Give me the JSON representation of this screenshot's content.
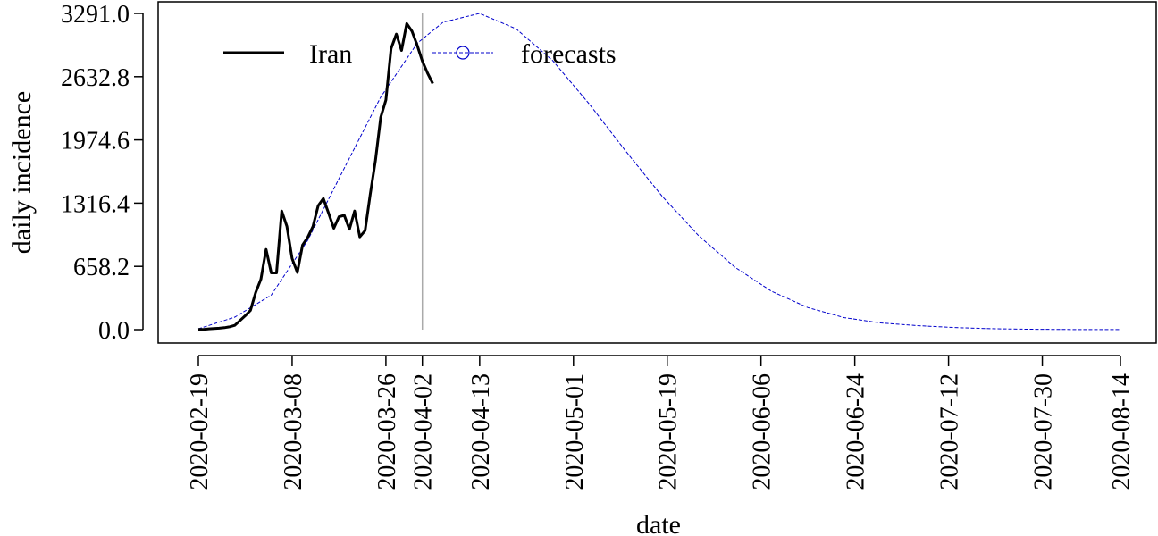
{
  "chart_data": {
    "type": "line",
    "xlabel": "date",
    "ylabel": "daily incidence",
    "x_range": [
      "2020-02-19",
      "2020-08-14"
    ],
    "ylim": [
      0,
      3291
    ],
    "y_ticks": [
      "0.0",
      "658.2",
      "1316.4",
      "1974.6",
      "2632.8",
      "3291.0"
    ],
    "x_ticks": [
      "2020-02-19",
      "2020-03-08",
      "2020-03-26",
      "2020-04-02",
      "2020-04-13",
      "2020-05-01",
      "2020-05-19",
      "2020-06-06",
      "2020-06-24",
      "2020-07-12",
      "2020-07-30",
      "2020-08-14"
    ],
    "vline_date": "2020-04-02",
    "grid": false,
    "legend_position": "top-left",
    "series": [
      {
        "name": "Iran",
        "color": "#000000",
        "style": "solid",
        "points": [
          [
            "2020-02-19",
            2
          ],
          [
            "2020-02-20",
            3
          ],
          [
            "2020-02-21",
            8
          ],
          [
            "2020-02-22",
            12
          ],
          [
            "2020-02-23",
            15
          ],
          [
            "2020-02-24",
            20
          ],
          [
            "2020-02-25",
            30
          ],
          [
            "2020-02-26",
            45
          ],
          [
            "2020-02-27",
            95
          ],
          [
            "2020-02-28",
            145
          ],
          [
            "2020-02-29",
            200
          ],
          [
            "2020-03-01",
            385
          ],
          [
            "2020-03-02",
            525
          ],
          [
            "2020-03-03",
            835
          ],
          [
            "2020-03-04",
            590
          ],
          [
            "2020-03-05",
            590
          ],
          [
            "2020-03-06",
            1235
          ],
          [
            "2020-03-07",
            1075
          ],
          [
            "2020-03-08",
            740
          ],
          [
            "2020-03-09",
            595
          ],
          [
            "2020-03-10",
            880
          ],
          [
            "2020-03-11",
            960
          ],
          [
            "2020-03-12",
            1075
          ],
          [
            "2020-03-13",
            1290
          ],
          [
            "2020-03-14",
            1365
          ],
          [
            "2020-03-15",
            1210
          ],
          [
            "2020-03-16",
            1055
          ],
          [
            "2020-03-17",
            1175
          ],
          [
            "2020-03-18",
            1190
          ],
          [
            "2020-03-19",
            1045
          ],
          [
            "2020-03-20",
            1235
          ],
          [
            "2020-03-21",
            965
          ],
          [
            "2020-03-22",
            1030
          ],
          [
            "2020-03-23",
            1410
          ],
          [
            "2020-03-24",
            1760
          ],
          [
            "2020-03-25",
            2210
          ],
          [
            "2020-03-26",
            2390
          ],
          [
            "2020-03-27",
            2925
          ],
          [
            "2020-03-28",
            3075
          ],
          [
            "2020-03-29",
            2905
          ],
          [
            "2020-03-30",
            3185
          ],
          [
            "2020-03-31",
            3105
          ],
          [
            "2020-04-01",
            2960
          ],
          [
            "2020-04-02",
            2795
          ],
          [
            "2020-04-03",
            2670
          ],
          [
            "2020-04-04",
            2560
          ]
        ]
      },
      {
        "name": "forecasts",
        "color": "#0000cc",
        "style": "dashed",
        "marker": "circle",
        "peak_date": "2020-04-13",
        "peak_value": 3291,
        "points": [
          [
            "2020-02-19",
            8
          ],
          [
            "2020-02-26",
            130
          ],
          [
            "2020-03-04",
            360
          ],
          [
            "2020-03-11",
            930
          ],
          [
            "2020-03-18",
            1680
          ],
          [
            "2020-03-25",
            2420
          ],
          [
            "2020-04-01",
            2980
          ],
          [
            "2020-04-06",
            3200
          ],
          [
            "2020-04-13",
            3291
          ],
          [
            "2020-04-20",
            3130
          ],
          [
            "2020-04-27",
            2800
          ],
          [
            "2020-05-04",
            2350
          ],
          [
            "2020-05-11",
            1860
          ],
          [
            "2020-05-18",
            1390
          ],
          [
            "2020-05-25",
            980
          ],
          [
            "2020-06-01",
            650
          ],
          [
            "2020-06-08",
            400
          ],
          [
            "2020-06-15",
            230
          ],
          [
            "2020-06-22",
            125
          ],
          [
            "2020-06-29",
            70
          ],
          [
            "2020-07-06",
            42
          ],
          [
            "2020-07-13",
            22
          ],
          [
            "2020-07-20",
            10
          ],
          [
            "2020-07-27",
            5
          ],
          [
            "2020-08-03",
            2
          ],
          [
            "2020-08-14",
            1
          ]
        ]
      }
    ]
  }
}
